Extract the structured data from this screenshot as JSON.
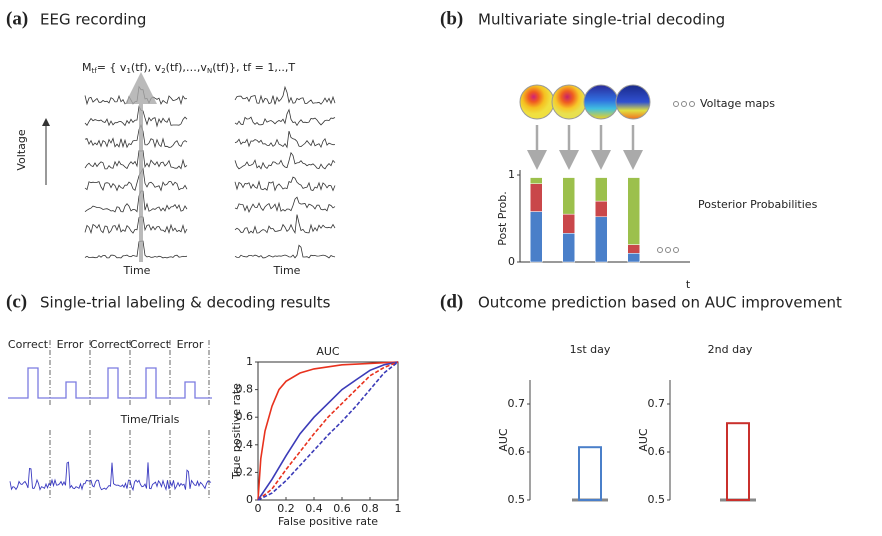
{
  "panels": [
    {
      "label": "(a)",
      "title": "EEG recording",
      "formula": [
        "M",
        "tf",
        "= { v",
        "1",
        "(tf), v",
        "2",
        "(tf),…,v",
        "N",
        "(tf)},  tf = 1,..,T"
      ],
      "axis_label": "Voltage",
      "time_labels": [
        "Time",
        "Time"
      ]
    },
    {
      "label": "(b)",
      "title": "Multivariate single-trial decoding",
      "maps_label": "Voltage maps",
      "posterior_label": "Posterior Probabilities"
    },
    {
      "label": "(c)",
      "title": "Single-trial labeling & decoding results",
      "trial_labels": [
        "Correct",
        "Error",
        "Correct",
        "Correct",
        "Error"
      ],
      "time_label": "Time/Trials"
    },
    {
      "label": "(d)",
      "title": "Outcome prediction based on AUC improvement"
    }
  ],
  "chart_data": [
    {
      "type": "bar",
      "stacked": true,
      "ylabel": "Post Prob.",
      "xlabel": "t",
      "ylim": [
        0,
        1
      ],
      "yticks": [
        0,
        1
      ],
      "series": [
        {
          "color": "#4a7fc9",
          "values": [
            0.58,
            0.33,
            0.52,
            0.1
          ]
        },
        {
          "color": "#c9474a",
          "values": [
            0.32,
            0.22,
            0.18,
            0.1
          ]
        },
        {
          "color": "#9cc04c",
          "values": [
            0.07,
            0.42,
            0.27,
            0.77
          ]
        }
      ]
    },
    {
      "type": "line",
      "title": "AUC",
      "xlabel": "False positive rate",
      "ylabel": "True positive rate",
      "xlim": [
        0,
        1
      ],
      "ylim": [
        0,
        1
      ],
      "xticks": [
        0,
        0.2,
        0.4,
        0.6,
        0.8,
        1
      ],
      "yticks": [
        0,
        0.2,
        0.4,
        0.6,
        0.8,
        1
      ],
      "series": [
        {
          "color": "#e8321e",
          "dash": false,
          "x": [
            0,
            0.02,
            0.05,
            0.1,
            0.15,
            0.2,
            0.3,
            0.4,
            0.6,
            0.8,
            1
          ],
          "values": [
            0,
            0.3,
            0.5,
            0.68,
            0.8,
            0.86,
            0.92,
            0.95,
            0.98,
            0.99,
            1
          ]
        },
        {
          "color": "#3b3bb8",
          "dash": false,
          "x": [
            0,
            0.1,
            0.2,
            0.3,
            0.4,
            0.5,
            0.6,
            0.7,
            0.8,
            0.9,
            1
          ],
          "values": [
            0,
            0.15,
            0.32,
            0.48,
            0.6,
            0.7,
            0.8,
            0.87,
            0.94,
            0.98,
            1
          ]
        },
        {
          "color": "#e8321e",
          "dash": true,
          "x": [
            0,
            0.1,
            0.2,
            0.3,
            0.4,
            0.5,
            0.6,
            0.7,
            0.8,
            0.9,
            1
          ],
          "values": [
            0,
            0.08,
            0.22,
            0.35,
            0.48,
            0.6,
            0.7,
            0.8,
            0.9,
            0.96,
            1
          ]
        },
        {
          "color": "#3b3bb8",
          "dash": true,
          "x": [
            0,
            0.1,
            0.2,
            0.3,
            0.4,
            0.5,
            0.6,
            0.7,
            0.8,
            0.9,
            1
          ],
          "values": [
            0,
            0.05,
            0.14,
            0.25,
            0.36,
            0.47,
            0.57,
            0.68,
            0.8,
            0.92,
            1
          ]
        }
      ]
    },
    {
      "type": "bar",
      "title": "1st day",
      "ylabel": "AUC",
      "ylim": [
        0.5,
        0.75
      ],
      "yticks": [
        0.5,
        0.6,
        0.7
      ],
      "values": [
        0.61
      ],
      "color": "#4a7fc9"
    },
    {
      "type": "bar",
      "title": "2nd day",
      "ylabel": "AUC",
      "ylim": [
        0.5,
        0.75
      ],
      "yticks": [
        0.5,
        0.6,
        0.7
      ],
      "values": [
        0.66
      ],
      "color": "#c9302c"
    }
  ]
}
